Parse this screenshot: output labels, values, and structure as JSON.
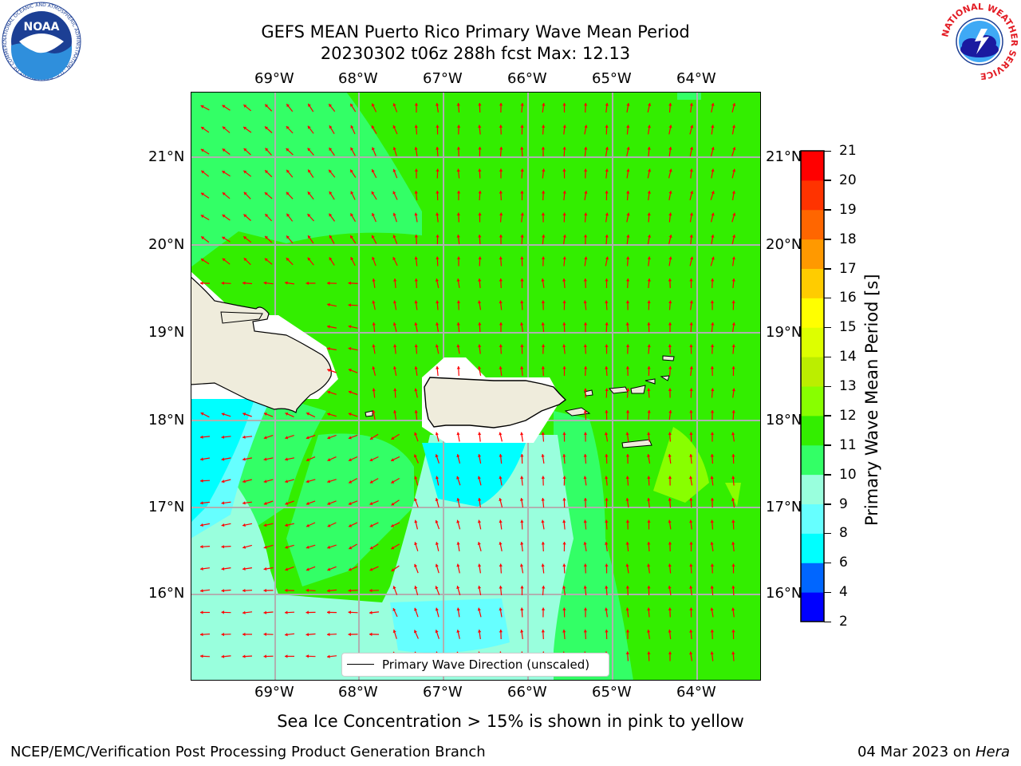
{
  "header": {
    "title_line1": "GEFS MEAN Puerto Rico Primary Wave Mean Period",
    "title_line2": "20230302 t06z 288h fcst   Max: 12.13"
  },
  "logos": {
    "noaa_text": "NOAA",
    "noaa_ring_text": "NATIONAL OCEANIC AND ATMOSPHERIC ADMINISTRATION · U.S. DEPARTMENT OF COMMERCE",
    "nws_ring_text": "NATIONAL WEATHER SERVICE"
  },
  "map": {
    "lon_ticks": [
      "69°W",
      "68°W",
      "67°W",
      "66°W",
      "65°W",
      "64°W"
    ],
    "lat_ticks": [
      "21°N",
      "20°N",
      "19°N",
      "18°N",
      "17°N",
      "16°N"
    ],
    "legend_label": "Primary Wave Direction (unscaled)",
    "colors": {
      "land": "#efecdc",
      "arrow": "#ff0000",
      "grid": "#b0b0b0"
    }
  },
  "colorbar": {
    "label": "Primary Wave Mean Period [s]",
    "ticks": [
      "2",
      "4",
      "6",
      "8",
      "9",
      "10",
      "11",
      "12",
      "13",
      "14",
      "15",
      "16",
      "17",
      "18",
      "19",
      "20",
      "21"
    ],
    "colors": [
      "#0000ff",
      "#0066ff",
      "#00ffff",
      "#66ffff",
      "#99ffdd",
      "#33ff66",
      "#33ee00",
      "#88ff00",
      "#bbee00",
      "#ddff00",
      "#ffff00",
      "#ffcc00",
      "#ff9900",
      "#ff6600",
      "#ff3300",
      "#ff0000"
    ]
  },
  "note": "Sea Ice Concentration > 15% is shown in pink to yellow",
  "footer": {
    "left": "NCEP/EMC/Verification Post Processing Product Generation Branch",
    "right_prefix": "04 Mar 2023 on ",
    "right_host": "Hera"
  }
}
